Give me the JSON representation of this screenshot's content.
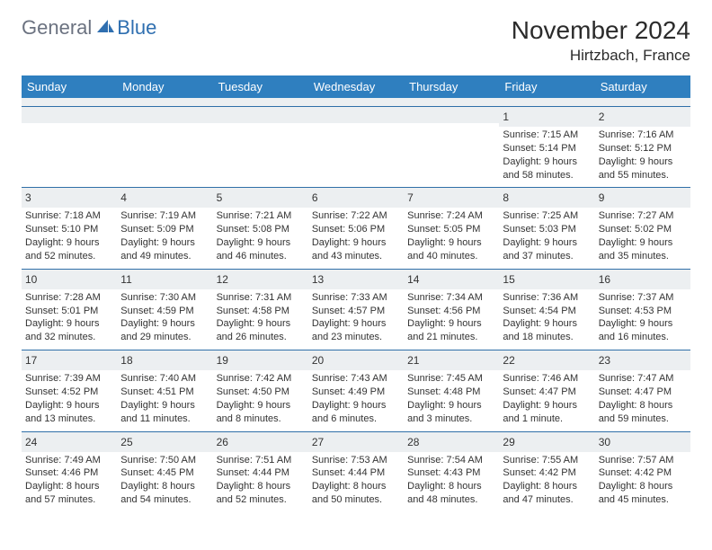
{
  "brand": {
    "part1": "General",
    "part2": "Blue"
  },
  "title": "November 2024",
  "location": "Hirtzbach, France",
  "colors": {
    "header_bg": "#2f7fbf",
    "rule": "#2f6fa8",
    "num_bg": "#eceff1",
    "text": "#333333",
    "logo_gray": "#6b7280",
    "logo_blue": "#2f6fb0"
  },
  "weekdays": [
    "Sunday",
    "Monday",
    "Tuesday",
    "Wednesday",
    "Thursday",
    "Friday",
    "Saturday"
  ],
  "weeks": [
    [
      null,
      null,
      null,
      null,
      null,
      {
        "n": "1",
        "sr": "Sunrise: 7:15 AM",
        "ss": "Sunset: 5:14 PM",
        "d1": "Daylight: 9 hours",
        "d2": "and 58 minutes."
      },
      {
        "n": "2",
        "sr": "Sunrise: 7:16 AM",
        "ss": "Sunset: 5:12 PM",
        "d1": "Daylight: 9 hours",
        "d2": "and 55 minutes."
      }
    ],
    [
      {
        "n": "3",
        "sr": "Sunrise: 7:18 AM",
        "ss": "Sunset: 5:10 PM",
        "d1": "Daylight: 9 hours",
        "d2": "and 52 minutes."
      },
      {
        "n": "4",
        "sr": "Sunrise: 7:19 AM",
        "ss": "Sunset: 5:09 PM",
        "d1": "Daylight: 9 hours",
        "d2": "and 49 minutes."
      },
      {
        "n": "5",
        "sr": "Sunrise: 7:21 AM",
        "ss": "Sunset: 5:08 PM",
        "d1": "Daylight: 9 hours",
        "d2": "and 46 minutes."
      },
      {
        "n": "6",
        "sr": "Sunrise: 7:22 AM",
        "ss": "Sunset: 5:06 PM",
        "d1": "Daylight: 9 hours",
        "d2": "and 43 minutes."
      },
      {
        "n": "7",
        "sr": "Sunrise: 7:24 AM",
        "ss": "Sunset: 5:05 PM",
        "d1": "Daylight: 9 hours",
        "d2": "and 40 minutes."
      },
      {
        "n": "8",
        "sr": "Sunrise: 7:25 AM",
        "ss": "Sunset: 5:03 PM",
        "d1": "Daylight: 9 hours",
        "d2": "and 37 minutes."
      },
      {
        "n": "9",
        "sr": "Sunrise: 7:27 AM",
        "ss": "Sunset: 5:02 PM",
        "d1": "Daylight: 9 hours",
        "d2": "and 35 minutes."
      }
    ],
    [
      {
        "n": "10",
        "sr": "Sunrise: 7:28 AM",
        "ss": "Sunset: 5:01 PM",
        "d1": "Daylight: 9 hours",
        "d2": "and 32 minutes."
      },
      {
        "n": "11",
        "sr": "Sunrise: 7:30 AM",
        "ss": "Sunset: 4:59 PM",
        "d1": "Daylight: 9 hours",
        "d2": "and 29 minutes."
      },
      {
        "n": "12",
        "sr": "Sunrise: 7:31 AM",
        "ss": "Sunset: 4:58 PM",
        "d1": "Daylight: 9 hours",
        "d2": "and 26 minutes."
      },
      {
        "n": "13",
        "sr": "Sunrise: 7:33 AM",
        "ss": "Sunset: 4:57 PM",
        "d1": "Daylight: 9 hours",
        "d2": "and 23 minutes."
      },
      {
        "n": "14",
        "sr": "Sunrise: 7:34 AM",
        "ss": "Sunset: 4:56 PM",
        "d1": "Daylight: 9 hours",
        "d2": "and 21 minutes."
      },
      {
        "n": "15",
        "sr": "Sunrise: 7:36 AM",
        "ss": "Sunset: 4:54 PM",
        "d1": "Daylight: 9 hours",
        "d2": "and 18 minutes."
      },
      {
        "n": "16",
        "sr": "Sunrise: 7:37 AM",
        "ss": "Sunset: 4:53 PM",
        "d1": "Daylight: 9 hours",
        "d2": "and 16 minutes."
      }
    ],
    [
      {
        "n": "17",
        "sr": "Sunrise: 7:39 AM",
        "ss": "Sunset: 4:52 PM",
        "d1": "Daylight: 9 hours",
        "d2": "and 13 minutes."
      },
      {
        "n": "18",
        "sr": "Sunrise: 7:40 AM",
        "ss": "Sunset: 4:51 PM",
        "d1": "Daylight: 9 hours",
        "d2": "and 11 minutes."
      },
      {
        "n": "19",
        "sr": "Sunrise: 7:42 AM",
        "ss": "Sunset: 4:50 PM",
        "d1": "Daylight: 9 hours",
        "d2": "and 8 minutes."
      },
      {
        "n": "20",
        "sr": "Sunrise: 7:43 AM",
        "ss": "Sunset: 4:49 PM",
        "d1": "Daylight: 9 hours",
        "d2": "and 6 minutes."
      },
      {
        "n": "21",
        "sr": "Sunrise: 7:45 AM",
        "ss": "Sunset: 4:48 PM",
        "d1": "Daylight: 9 hours",
        "d2": "and 3 minutes."
      },
      {
        "n": "22",
        "sr": "Sunrise: 7:46 AM",
        "ss": "Sunset: 4:47 PM",
        "d1": "Daylight: 9 hours",
        "d2": "and 1 minute."
      },
      {
        "n": "23",
        "sr": "Sunrise: 7:47 AM",
        "ss": "Sunset: 4:47 PM",
        "d1": "Daylight: 8 hours",
        "d2": "and 59 minutes."
      }
    ],
    [
      {
        "n": "24",
        "sr": "Sunrise: 7:49 AM",
        "ss": "Sunset: 4:46 PM",
        "d1": "Daylight: 8 hours",
        "d2": "and 57 minutes."
      },
      {
        "n": "25",
        "sr": "Sunrise: 7:50 AM",
        "ss": "Sunset: 4:45 PM",
        "d1": "Daylight: 8 hours",
        "d2": "and 54 minutes."
      },
      {
        "n": "26",
        "sr": "Sunrise: 7:51 AM",
        "ss": "Sunset: 4:44 PM",
        "d1": "Daylight: 8 hours",
        "d2": "and 52 minutes."
      },
      {
        "n": "27",
        "sr": "Sunrise: 7:53 AM",
        "ss": "Sunset: 4:44 PM",
        "d1": "Daylight: 8 hours",
        "d2": "and 50 minutes."
      },
      {
        "n": "28",
        "sr": "Sunrise: 7:54 AM",
        "ss": "Sunset: 4:43 PM",
        "d1": "Daylight: 8 hours",
        "d2": "and 48 minutes."
      },
      {
        "n": "29",
        "sr": "Sunrise: 7:55 AM",
        "ss": "Sunset: 4:42 PM",
        "d1": "Daylight: 8 hours",
        "d2": "and 47 minutes."
      },
      {
        "n": "30",
        "sr": "Sunrise: 7:57 AM",
        "ss": "Sunset: 4:42 PM",
        "d1": "Daylight: 8 hours",
        "d2": "and 45 minutes."
      }
    ]
  ]
}
